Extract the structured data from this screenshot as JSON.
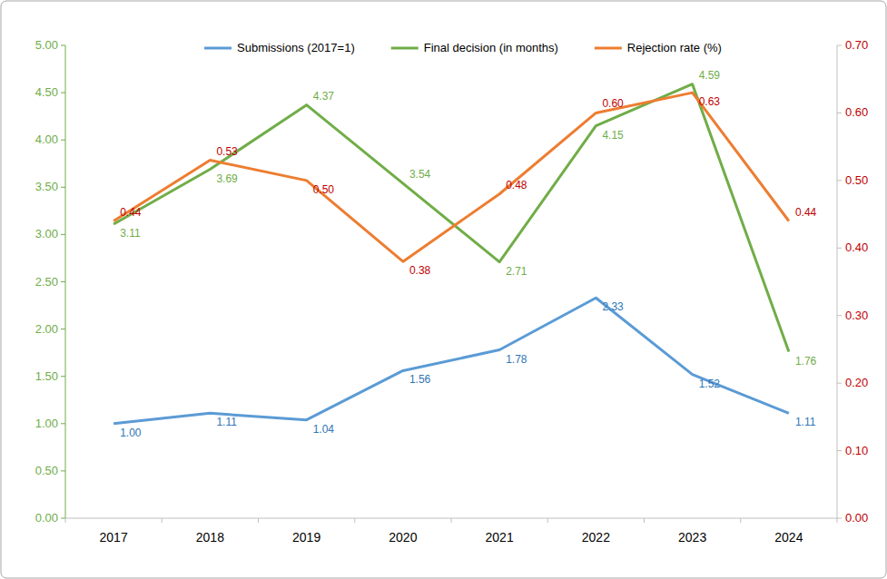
{
  "chart_data": {
    "type": "line",
    "categories": [
      "2017",
      "2018",
      "2019",
      "2020",
      "2021",
      "2022",
      "2023",
      "2024"
    ],
    "series": [
      {
        "name": "Submissions (2017=1)",
        "color": "#5b9bd5",
        "values": [
          1.0,
          1.11,
          1.04,
          1.56,
          1.78,
          2.33,
          1.52,
          1.11
        ],
        "value_labels": [
          "1.00",
          "1.11",
          "1.04",
          "1.56",
          "1.78",
          "2.33",
          "1.52",
          "1.11"
        ]
      },
      {
        "name": "Final decision (in months)",
        "color": "#70ad47",
        "values": [
          3.11,
          3.69,
          4.37,
          3.54,
          2.71,
          4.15,
          4.59,
          1.76
        ],
        "value_labels": [
          "3.11",
          "3.69",
          "4.37",
          "3.54",
          "2.71",
          "4.15",
          "4.59",
          "1.76"
        ]
      },
      {
        "name": "Rejection rate (%)",
        "color": "#ed7d31",
        "axis": "y2",
        "values": [
          0.44,
          0.53,
          0.5,
          0.38,
          0.48,
          0.6,
          0.63,
          0.44
        ],
        "value_labels": [
          "0.44",
          "0.53",
          "0.50",
          "0.38",
          "0.48",
          "0.60",
          "0.63",
          "0.44"
        ]
      }
    ],
    "ylim": [
      0,
      5
    ],
    "yticks": [
      {
        "value": 0,
        "label": "0.00"
      },
      {
        "value": 0.5,
        "label": "0.50"
      },
      {
        "value": 1,
        "label": "1.00"
      },
      {
        "value": 1.5,
        "label": "1.50"
      },
      {
        "value": 2,
        "label": "2.00"
      },
      {
        "value": 2.5,
        "label": "2.50"
      },
      {
        "value": 3,
        "label": "3.00"
      },
      {
        "value": 3.5,
        "label": "3.50"
      },
      {
        "value": 4,
        "label": "4.00"
      },
      {
        "value": 4.5,
        "label": "4.50"
      },
      {
        "value": 5,
        "label": "5.00"
      }
    ],
    "y2lim": [
      0,
      0.7
    ],
    "y2ticks": [
      {
        "value": 0,
        "label": "0.00"
      },
      {
        "value": 0.1,
        "label": "0.10"
      },
      {
        "value": 0.2,
        "label": "0.20"
      },
      {
        "value": 0.3,
        "label": "0.30"
      },
      {
        "value": 0.4,
        "label": "0.40"
      },
      {
        "value": 0.5,
        "label": "0.50"
      },
      {
        "value": 0.6,
        "label": "0.60"
      },
      {
        "value": 0.7,
        "label": "0.70"
      }
    ],
    "grid": false,
    "legend": "top",
    "data_labels": true
  }
}
